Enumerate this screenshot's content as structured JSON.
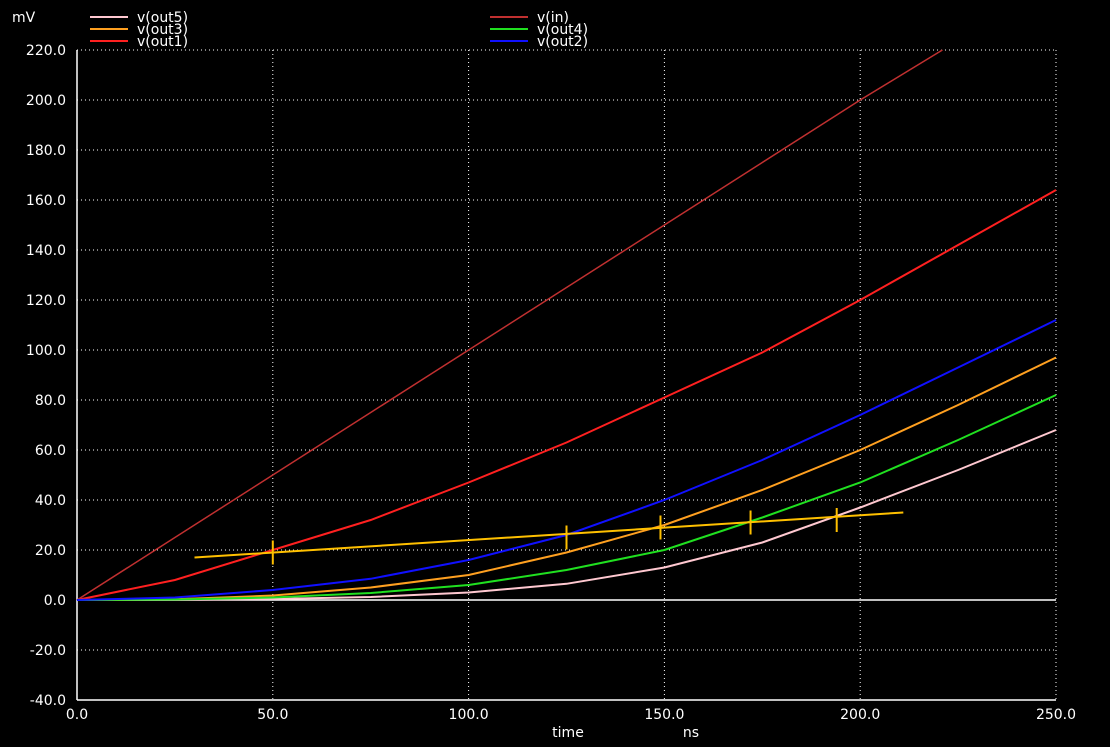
{
  "chart_data": {
    "type": "line",
    "y_unit": "mV",
    "x_unit": "ns",
    "xlabel": "time",
    "xlim": [
      0,
      250
    ],
    "ylim": [
      -40,
      220
    ],
    "xticks": [
      0,
      50,
      100,
      150,
      200,
      250
    ],
    "xtick_labels": [
      "0.0",
      "50.0",
      "100.0",
      "150.0",
      "200.0",
      "250.0"
    ],
    "yticks": [
      -40,
      -20,
      0,
      20,
      40,
      60,
      80,
      100,
      120,
      140,
      160,
      180,
      200,
      220
    ],
    "ytick_labels": [
      "-40.0",
      "-20.0",
      "0.0",
      "20.0",
      "40.0",
      "60.0",
      "80.0",
      "100.0",
      "120.0",
      "140.0",
      "160.0",
      "180.0",
      "200.0",
      "220.0"
    ],
    "grid": true,
    "legend": "top",
    "series": [
      {
        "name": "v(out5)",
        "color": "#ffc8d0",
        "x": [
          0,
          25,
          50,
          75,
          100,
          125,
          150,
          175,
          200,
          225,
          250
        ],
        "y": [
          0,
          0.05,
          0.4,
          1.2,
          3,
          6.5,
          13,
          23,
          37,
          52,
          68
        ]
      },
      {
        "name": "v(out3)",
        "color": "#ffa020",
        "x": [
          0,
          25,
          50,
          75,
          100,
          125,
          150,
          175,
          200,
          225,
          250
        ],
        "y": [
          0,
          0.3,
          1.8,
          5,
          10,
          19,
          30,
          44,
          60,
          78,
          97
        ]
      },
      {
        "name": "v(out1)",
        "color": "#ff2020",
        "x": [
          0,
          25,
          50,
          75,
          100,
          125,
          150,
          175,
          200,
          225,
          250
        ],
        "y": [
          0,
          8,
          20,
          32,
          47,
          63,
          81,
          99,
          120,
          142,
          164
        ]
      },
      {
        "name": "v(in)",
        "color": "#c03030",
        "x": [
          0,
          25,
          50,
          75,
          100,
          125,
          150,
          175,
          200,
          221
        ],
        "y": [
          0,
          25,
          50,
          75,
          100,
          125,
          150,
          175,
          200,
          220
        ]
      },
      {
        "name": "v(out4)",
        "color": "#20e020",
        "x": [
          0,
          25,
          50,
          75,
          100,
          125,
          150,
          175,
          200,
          225,
          250
        ],
        "y": [
          0,
          0.2,
          1,
          2.8,
          6,
          12,
          20,
          33,
          47,
          64,
          82
        ]
      },
      {
        "name": "v(out2)",
        "color": "#1010ff",
        "x": [
          0,
          25,
          50,
          75,
          100,
          125,
          150,
          175,
          200,
          225,
          250
        ],
        "y": [
          0,
          1,
          4,
          8.5,
          16,
          26,
          40,
          56,
          74,
          93,
          112
        ]
      },
      {
        "color": "#ffc000",
        "x": [
          30,
          211
        ],
        "y": [
          17,
          35
        ]
      }
    ],
    "markers": {
      "color": "#ffc000",
      "points": [
        {
          "x": 50,
          "y": 19
        },
        {
          "x": 125,
          "y": 25
        },
        {
          "x": 149,
          "y": 29
        },
        {
          "x": 172,
          "y": 31
        },
        {
          "x": 194,
          "y": 32
        }
      ]
    }
  }
}
